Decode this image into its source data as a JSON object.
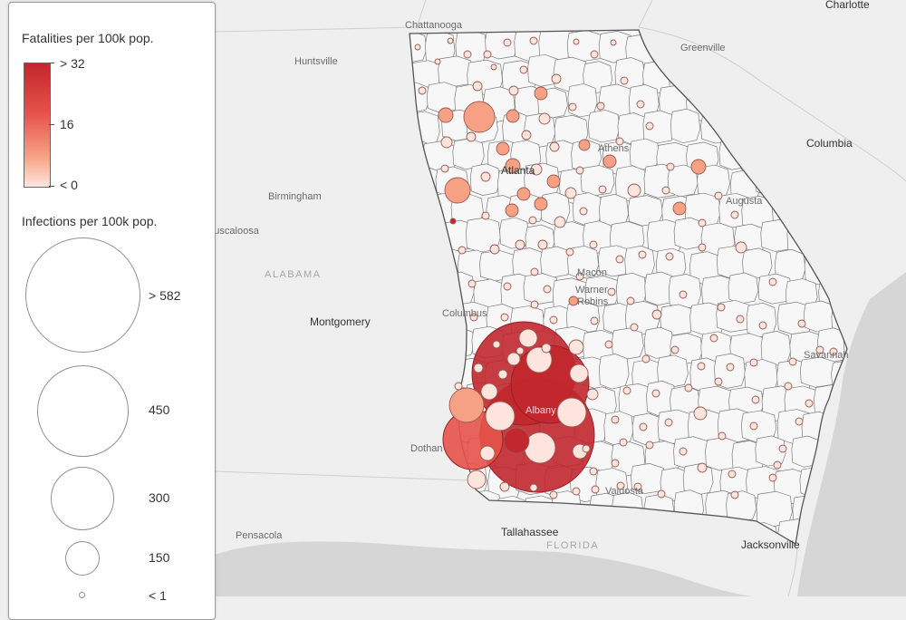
{
  "map": {
    "background": "#efefef",
    "water": "#d3d3d3",
    "labels": {
      "chattanooga": "Chattanooga",
      "charlotte": "Charlotte",
      "huntsville": "Huntsville",
      "greenville": "Greenville",
      "athens": "Athens",
      "atlanta": "Atlanta",
      "columbia": "Columbia",
      "birmingham": "Birmingham",
      "augusta": "Augusta",
      "tuscaloosa": "Tuscaloosa",
      "alabama": "ALABAMA",
      "macon": "Macon",
      "warner_robins": "Warner\nRobins",
      "columbus": "Columbus",
      "montgomery": "Montgomery",
      "savannah": "Savannah",
      "albany": "Albany",
      "dothan": "Dothan",
      "valdosta": "Valdosta",
      "tallahassee": "Tallahassee",
      "florida": "FLORIDA",
      "pensacola": "Pensacola",
      "jacksonville": "Jacksonville"
    }
  },
  "legend": {
    "fatalities_title": "Fatalities per 100k pop.",
    "fatalities_ticks": [
      "> 32",
      "16",
      "< 0"
    ],
    "fatality_colors": [
      "#c1272d",
      "#e5524a",
      "#f6a183",
      "#fde5dd"
    ],
    "infections_title": "Infections per 100k pop.",
    "infection_ticks": [
      "> 582",
      "450",
      "300",
      "150",
      "< 1"
    ]
  }
}
